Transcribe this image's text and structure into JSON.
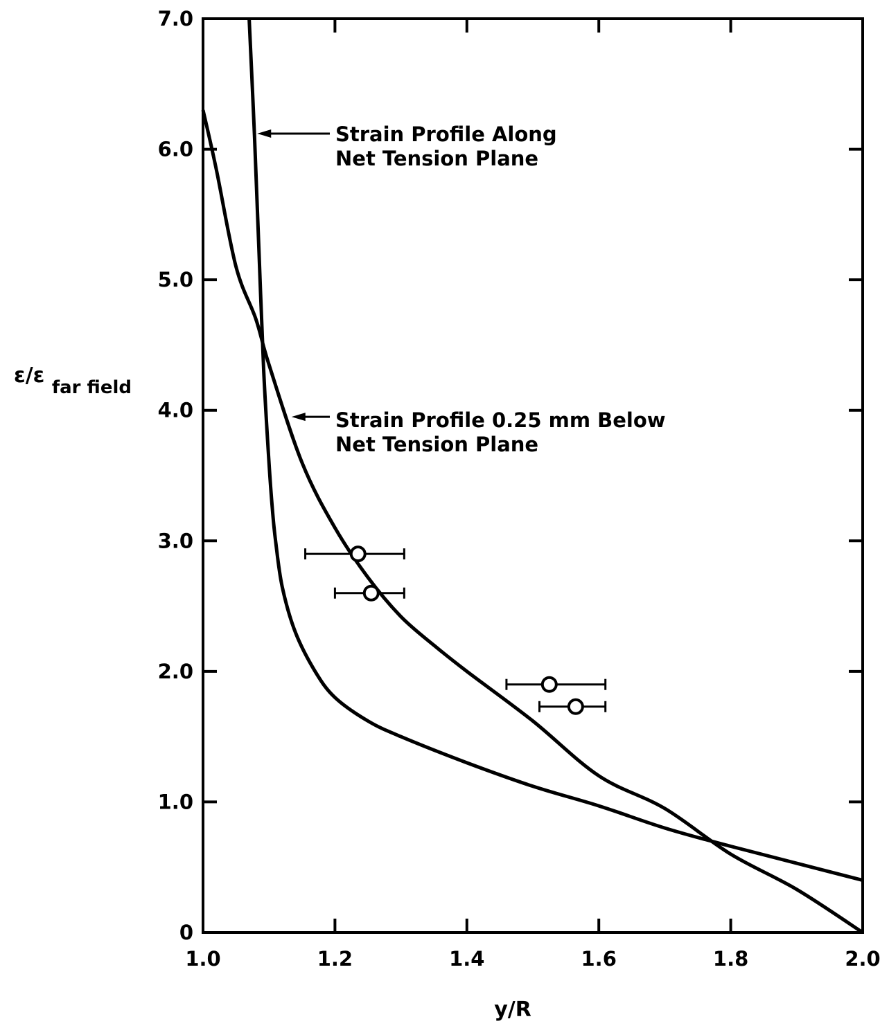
{
  "chart_data": {
    "type": "line",
    "title": "",
    "xlabel": "y/R",
    "ylabel": {
      "main": "ε/ε",
      "subscript": "far field"
    },
    "xlim": [
      1.0,
      2.0
    ],
    "ylim": [
      0,
      7.0
    ],
    "grid": false,
    "x_ticks": [
      1.0,
      1.2,
      1.4,
      1.6,
      1.8,
      2.0
    ],
    "x_tick_labels": [
      "1.0",
      "1.2",
      "1.4",
      "1.6",
      "1.8",
      "2.0"
    ],
    "y_ticks": [
      0,
      1.0,
      2.0,
      3.0,
      4.0,
      5.0,
      6.0,
      7.0
    ],
    "y_tick_labels": [
      "0",
      "1.0",
      "2.0",
      "3.0",
      "4.0",
      "5.0",
      "6.0",
      "7.0"
    ],
    "series": [
      {
        "name": "Strain Profile Along Net Tension Plane",
        "points": [
          [
            1.07,
            7.0
          ],
          [
            1.078,
            6.1
          ],
          [
            1.085,
            5.2
          ],
          [
            1.092,
            4.3
          ],
          [
            1.1,
            3.6
          ],
          [
            1.105,
            3.25
          ],
          [
            1.11,
            3.0
          ],
          [
            1.12,
            2.65
          ],
          [
            1.14,
            2.3
          ],
          [
            1.17,
            2.0
          ],
          [
            1.2,
            1.8
          ],
          [
            1.25,
            1.62
          ],
          [
            1.3,
            1.5
          ],
          [
            1.4,
            1.3
          ],
          [
            1.5,
            1.12
          ],
          [
            1.6,
            0.97
          ],
          [
            1.7,
            0.8
          ],
          [
            1.8,
            0.66
          ],
          [
            1.9,
            0.53
          ],
          [
            2.0,
            0.4
          ]
        ]
      },
      {
        "name": "Strain Profile 0.25 mm Below Net Tension Plane",
        "points": [
          [
            1.0,
            6.3
          ],
          [
            1.02,
            5.85
          ],
          [
            1.05,
            5.1
          ],
          [
            1.08,
            4.7
          ],
          [
            1.1,
            4.35
          ],
          [
            1.15,
            3.6
          ],
          [
            1.2,
            3.1
          ],
          [
            1.25,
            2.72
          ],
          [
            1.3,
            2.42
          ],
          [
            1.35,
            2.2
          ],
          [
            1.4,
            2.0
          ],
          [
            1.5,
            1.62
          ],
          [
            1.6,
            1.2
          ],
          [
            1.7,
            0.95
          ],
          [
            1.8,
            0.6
          ],
          [
            1.9,
            0.33
          ],
          [
            2.0,
            0.0
          ]
        ]
      }
    ],
    "measured_points": [
      {
        "x": 1.235,
        "y": 2.9,
        "xerr_low": 1.155,
        "xerr_high": 1.305
      },
      {
        "x": 1.255,
        "y": 2.6,
        "xerr_low": 1.2,
        "xerr_high": 1.305
      },
      {
        "x": 1.525,
        "y": 1.9,
        "xerr_low": 1.46,
        "xerr_high": 1.61
      },
      {
        "x": 1.565,
        "y": 1.73,
        "xerr_low": 1.51,
        "xerr_high": 1.61
      }
    ],
    "annotations": [
      {
        "line1": "Strain Profile Along",
        "line2": "Net Tension Plane",
        "arrow_to": [
          1.078,
          6.12
        ]
      },
      {
        "line1": "Strain Profile 0.25 mm Below",
        "line2": "Net Tension Plane",
        "arrow_to": [
          1.13,
          3.95
        ]
      }
    ]
  }
}
